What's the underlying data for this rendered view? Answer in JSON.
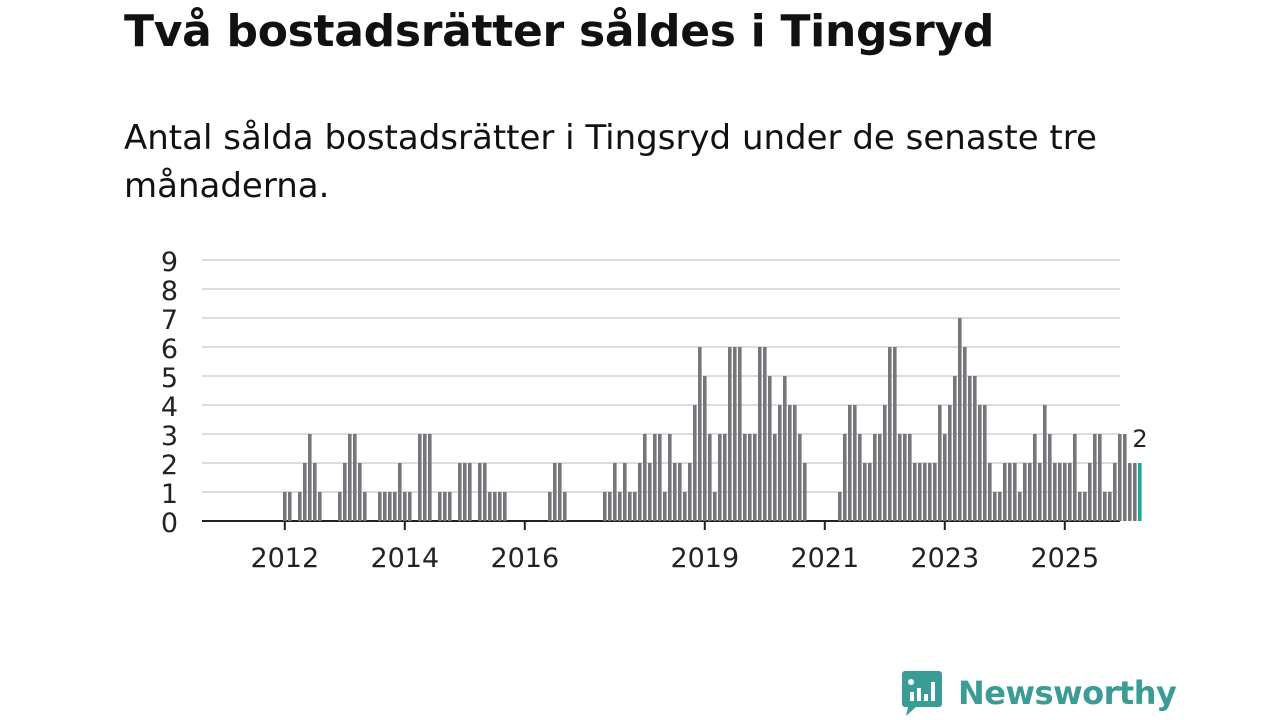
{
  "colors": {
    "bar": "#77767b",
    "highlight": "#1aa89c",
    "brand": "#3a9c94"
  },
  "chart_data": {
    "type": "bar",
    "title": "Två bostadsrätter såldes i Tingsryd",
    "subtitle": "Antal sålda bostadsrätter i Tingsryd under de senaste tre månaderna.",
    "xlabel": "",
    "ylabel": "",
    "ylim": [
      0,
      9
    ],
    "y_ticks": [
      0,
      1,
      2,
      3,
      4,
      5,
      6,
      7,
      8,
      9
    ],
    "x_ticks": [
      {
        "label": "2012",
        "index": 8
      },
      {
        "label": "2014",
        "index": 32
      },
      {
        "label": "2016",
        "index": 56
      },
      {
        "label": "2019",
        "index": 92
      },
      {
        "label": "2021",
        "index": 116
      },
      {
        "label": "2023",
        "index": 140
      },
      {
        "label": "2025",
        "index": 164
      }
    ],
    "categories_note": "Monthly values, index 0 = first month shown (left edge), last = most recent month",
    "values": [
      0,
      0,
      0,
      0,
      0,
      0,
      0,
      0,
      1,
      1,
      0,
      1,
      2,
      3,
      2,
      1,
      0,
      0,
      0,
      1,
      2,
      3,
      3,
      2,
      1,
      0,
      0,
      1,
      1,
      1,
      1,
      2,
      1,
      1,
      0,
      3,
      3,
      3,
      0,
      1,
      1,
      1,
      0,
      2,
      2,
      2,
      0,
      2,
      2,
      1,
      1,
      1,
      1,
      0,
      0,
      0,
      0,
      0,
      0,
      0,
      0,
      1,
      2,
      2,
      1,
      0,
      0,
      0,
      0,
      0,
      0,
      0,
      1,
      1,
      2,
      1,
      2,
      1,
      1,
      2,
      3,
      2,
      3,
      3,
      1,
      3,
      2,
      2,
      1,
      2,
      4,
      6,
      5,
      3,
      1,
      3,
      3,
      6,
      6,
      6,
      3,
      3,
      3,
      6,
      6,
      5,
      3,
      4,
      5,
      4,
      4,
      3,
      2,
      0,
      0,
      0,
      0,
      0,
      0,
      1,
      3,
      4,
      4,
      3,
      2,
      2,
      3,
      3,
      4,
      6,
      6,
      3,
      3,
      3,
      2,
      2,
      2,
      2,
      2,
      4,
      3,
      4,
      5,
      7,
      6,
      5,
      5,
      4,
      4,
      2,
      1,
      1,
      2,
      2,
      2,
      1,
      2,
      2,
      3,
      2,
      4,
      3,
      2,
      2,
      2,
      2,
      3,
      1,
      1,
      2,
      3,
      3,
      1,
      1,
      2,
      3,
      3,
      2,
      2,
      2
    ],
    "highlight_last": true,
    "last_label": "2"
  },
  "brand": {
    "name": "Newsworthy"
  }
}
